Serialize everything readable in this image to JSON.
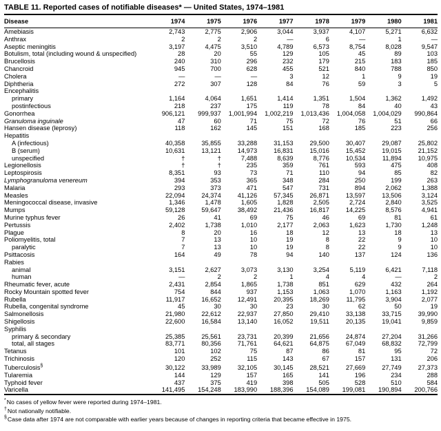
{
  "title": "TABLE 11. Reported cases of notifiable diseases* — United States, 1974–1981",
  "table": {
    "columns": [
      "Disease",
      "1974",
      "1975",
      "1976",
      "1977",
      "1978",
      "1979",
      "1980",
      "1981"
    ],
    "rows": [
      {
        "label": "Amebiasis",
        "values": [
          "2,743",
          "2,775",
          "2,906",
          "3,044",
          "3,937",
          "4,107",
          "5,271",
          "6,632"
        ]
      },
      {
        "label": "Anthrax",
        "values": [
          "2",
          "2",
          "2",
          "—",
          "6",
          "—",
          "1",
          "—"
        ]
      },
      {
        "label": "Aseptic meningitis",
        "values": [
          "3,197",
          "4,475",
          "3,510",
          "4,789",
          "6,573",
          "8,754",
          "8,028",
          "9,547"
        ]
      },
      {
        "label": "Botulism, total (including wound & unspecified)",
        "values": [
          "28",
          "20",
          "55",
          "129",
          "105",
          "45",
          "89",
          "103"
        ]
      },
      {
        "label": "Brucellosis",
        "values": [
          "240",
          "310",
          "296",
          "232",
          "179",
          "215",
          "183",
          "185"
        ]
      },
      {
        "label": "Chancroid",
        "values": [
          "945",
          "700",
          "628",
          "455",
          "521",
          "840",
          "788",
          "850"
        ]
      },
      {
        "label": "Cholera",
        "values": [
          "—",
          "—",
          "—",
          "3",
          "12",
          "1",
          "9",
          "19"
        ]
      },
      {
        "label": "Diphtheria",
        "values": [
          "272",
          "307",
          "128",
          "84",
          "76",
          "59",
          "3",
          "5"
        ]
      },
      {
        "label": "Encephalitis",
        "group": true,
        "values": []
      },
      {
        "label": "primary",
        "indent": 1,
        "values": [
          "1,164",
          "4,064",
          "1,651",
          "1,414",
          "1,351",
          "1,504",
          "1,362",
          "1,492"
        ]
      },
      {
        "label": "postinfectious",
        "indent": 1,
        "values": [
          "218",
          "237",
          "175",
          "119",
          "78",
          "84",
          "40",
          "43"
        ]
      },
      {
        "label": "Gonorrhea",
        "values": [
          "906,121",
          "999,937",
          "1,001,994",
          "1,002,219",
          "1,013,436",
          "1,004,058",
          "1,004,029",
          "990,864"
        ]
      },
      {
        "label": "Granuloma inguinale",
        "italic": true,
        "values": [
          "47",
          "60",
          "71",
          "75",
          "72",
          "76",
          "51",
          "66"
        ]
      },
      {
        "label": "Hansen disease (leprosy)",
        "values": [
          "118",
          "162",
          "145",
          "151",
          "168",
          "185",
          "223",
          "256"
        ]
      },
      {
        "label": "Hepatitis",
        "group": true,
        "values": []
      },
      {
        "label": "A (infectious)",
        "indent": 1,
        "values": [
          "40,358",
          "35,855",
          "33,288",
          "31,153",
          "29,500",
          "30,407",
          "29,087",
          "25,802"
        ]
      },
      {
        "label": "B (serum)",
        "indent": 1,
        "values": [
          "10,631",
          "13,121",
          "14,973",
          "16,831",
          "15,016",
          "15,452",
          "19,015",
          "21,152"
        ]
      },
      {
        "label": "unspecified",
        "indent": 1,
        "values": [
          "†",
          "†",
          "7,488",
          "8,639",
          "8,776",
          "10,534",
          "11,894",
          "10,975"
        ]
      },
      {
        "label": "Legionellosis",
        "values": [
          "†",
          "†",
          "235",
          "359",
          "761",
          "593",
          "475",
          "408"
        ]
      },
      {
        "label": "Leptospirosis",
        "values": [
          "8,351",
          "93",
          "73",
          "71",
          "110",
          "94",
          "85",
          "82"
        ]
      },
      {
        "label": "Lymphogranuloma venereum",
        "italic": true,
        "values": [
          "394",
          "353",
          "365",
          "348",
          "284",
          "250",
          "199",
          "263"
        ]
      },
      {
        "label": "Malaria",
        "values": [
          "293",
          "373",
          "471",
          "547",
          "731",
          "894",
          "2,062",
          "1,388"
        ]
      },
      {
        "label": "Measles",
        "values": [
          "22,094",
          "24,374",
          "41,126",
          "57,345",
          "26,871",
          "13,597",
          "13,506",
          "3,124"
        ]
      },
      {
        "label": "Meningococcal disease, invasive",
        "values": [
          "1,346",
          "1,478",
          "1,605",
          "1,828",
          "2,505",
          "2,724",
          "2,840",
          "3,525"
        ]
      },
      {
        "label": "Mumps",
        "values": [
          "59,128",
          "59,647",
          "38,492",
          "21,436",
          "16,817",
          "14,225",
          "8,576",
          "4,941"
        ]
      },
      {
        "label": "Murine typhus fever",
        "values": [
          "26",
          "41",
          "69",
          "75",
          "46",
          "69",
          "81",
          "61"
        ]
      },
      {
        "label": "Pertussis",
        "values": [
          "2,402",
          "1,738",
          "1,010",
          "2,177",
          "2,063",
          "1,623",
          "1,730",
          "1,248"
        ]
      },
      {
        "label": "Plague",
        "values": [
          "8",
          "20",
          "16",
          "18",
          "12",
          "13",
          "18",
          "13"
        ]
      },
      {
        "label": "Poliomyelitis, total",
        "values": [
          "7",
          "13",
          "10",
          "19",
          "8",
          "22",
          "9",
          "10"
        ]
      },
      {
        "label": "paralytic",
        "indent": 1,
        "values": [
          "7",
          "13",
          "10",
          "19",
          "8",
          "22",
          "9",
          "10"
        ]
      },
      {
        "label": "Psittacosis",
        "values": [
          "164",
          "49",
          "78",
          "94",
          "140",
          "137",
          "124",
          "136"
        ]
      },
      {
        "label": "Rabies",
        "group": true,
        "values": []
      },
      {
        "label": "animal",
        "indent": 1,
        "values": [
          "3,151",
          "2,627",
          "3,073",
          "3,130",
          "3,254",
          "5,119",
          "6,421",
          "7,118"
        ]
      },
      {
        "label": "human",
        "indent": 1,
        "values": [
          "—",
          "2",
          "2",
          "1",
          "4",
          "4",
          "—",
          "2"
        ]
      },
      {
        "label": "Rheumatic fever, acute",
        "values": [
          "2,431",
          "2,854",
          "1,865",
          "1,738",
          "851",
          "629",
          "432",
          "264"
        ]
      },
      {
        "label": "Rocky Mountain spotted fever",
        "values": [
          "754",
          "844",
          "937",
          "1,153",
          "1,063",
          "1,070",
          "1,163",
          "1,192"
        ]
      },
      {
        "label": "Rubella",
        "values": [
          "11,917",
          "16,652",
          "12,491",
          "20,395",
          "18,269",
          "11,795",
          "3,904",
          "2,077"
        ]
      },
      {
        "label": "Rubella, congenital syndrome",
        "values": [
          "45",
          "30",
          "30",
          "23",
          "30",
          "62",
          "50",
          "19"
        ]
      },
      {
        "label": "Salmonellosis",
        "values": [
          "21,980",
          "22,612",
          "22,937",
          "27,850",
          "29,410",
          "33,138",
          "33,715",
          "39,990"
        ]
      },
      {
        "label": "Shigellosis",
        "values": [
          "22,600",
          "16,584",
          "13,140",
          "16,052",
          "19,511",
          "20,135",
          "19,041",
          "9,859"
        ]
      },
      {
        "label": "Syphilis",
        "group": true,
        "values": []
      },
      {
        "label": "primary & secondary",
        "indent": 1,
        "values": [
          "25,385",
          "25,561",
          "23,731",
          "20,399",
          "21,656",
          "24,874",
          "27,204",
          "31,266"
        ]
      },
      {
        "label": "total, all stages",
        "indent": 1,
        "values": [
          "83,771",
          "80,356",
          "71,761",
          "64,621",
          "64,875",
          "67,049",
          "68,832",
          "72,799"
        ]
      },
      {
        "label": "Tetanus",
        "values": [
          "101",
          "102",
          "75",
          "87",
          "86",
          "81",
          "95",
          "72"
        ]
      },
      {
        "label": "Trichinosis",
        "values": [
          "120",
          "252",
          "115",
          "143",
          "67",
          "157",
          "131",
          "206"
        ]
      },
      {
        "label": "Tuberculosis",
        "sup": "§",
        "values": [
          "30,122",
          "33,989",
          "32,105",
          "30,145",
          "28,521",
          "27,669",
          "27,749",
          "27,373"
        ]
      },
      {
        "label": "Tularemia",
        "values": [
          "144",
          "129",
          "157",
          "165",
          "141",
          "196",
          "234",
          "288"
        ]
      },
      {
        "label": "Typhoid fever",
        "values": [
          "437",
          "375",
          "419",
          "398",
          "505",
          "528",
          "510",
          "584"
        ]
      },
      {
        "label": "Varicella",
        "values": [
          "141,495",
          "154,248",
          "183,990",
          "188,396",
          "154,089",
          "199,081",
          "190,894",
          "200,766"
        ]
      }
    ]
  },
  "footnotes": [
    {
      "marker": "*",
      "text": "No cases of yellow fever were reported during 1974–1981."
    },
    {
      "marker": "†",
      "text": "Not nationally notifiable."
    },
    {
      "marker": "§",
      "text": "Case data after 1974 are not comparable with earlier years because of changes in reporting criteria that became effective in 1975."
    }
  ]
}
